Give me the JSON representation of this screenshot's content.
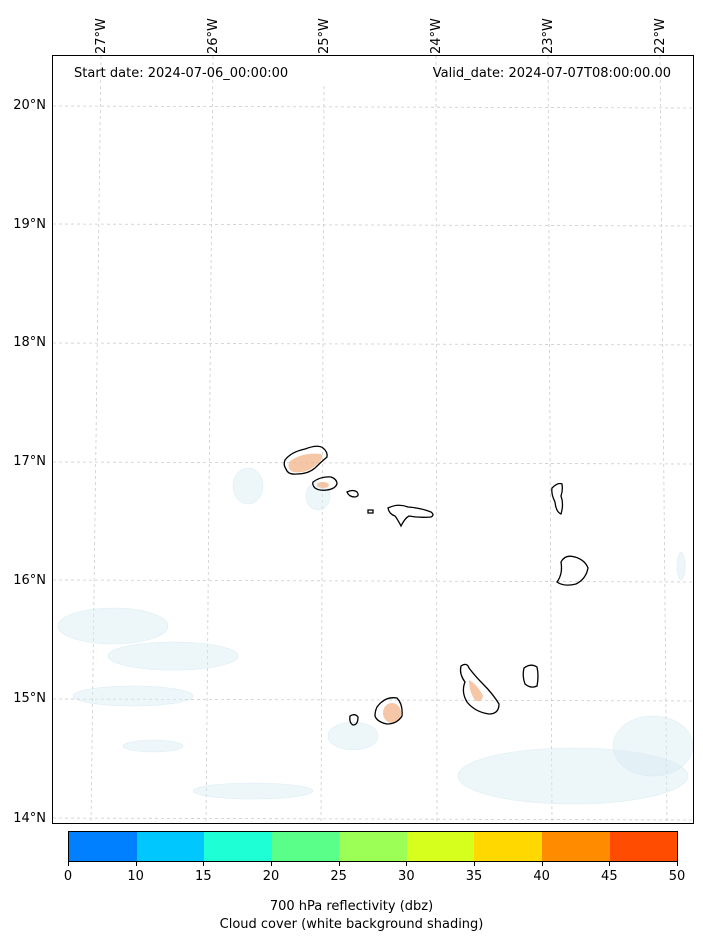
{
  "header": {
    "start_date": "Start date: 2024-07-06_00:00:00",
    "valid_date": "Valid_date: 2024-07-07T08:00:00.00"
  },
  "lon_labels": [
    "27°W",
    "26°W",
    "25°W",
    "24°W",
    "23°W",
    "22°W"
  ],
  "lat_labels": [
    "20°N",
    "19°N",
    "18°N",
    "17°N",
    "16°N",
    "15°N",
    "14°N"
  ],
  "colorbar": {
    "ticks": [
      "0",
      "10",
      "15",
      "20",
      "25",
      "30",
      "35",
      "40",
      "45",
      "50"
    ],
    "colors": [
      "#0080ff",
      "#00c8ff",
      "#1effd6",
      "#5aff8a",
      "#9bff55",
      "#d7ff1e",
      "#ffd800",
      "#ff8c00",
      "#ff4c00"
    ],
    "title": "700 hPa reflectivity (dbz)",
    "subtitle": "Cloud cover (white background shading)"
  }
}
